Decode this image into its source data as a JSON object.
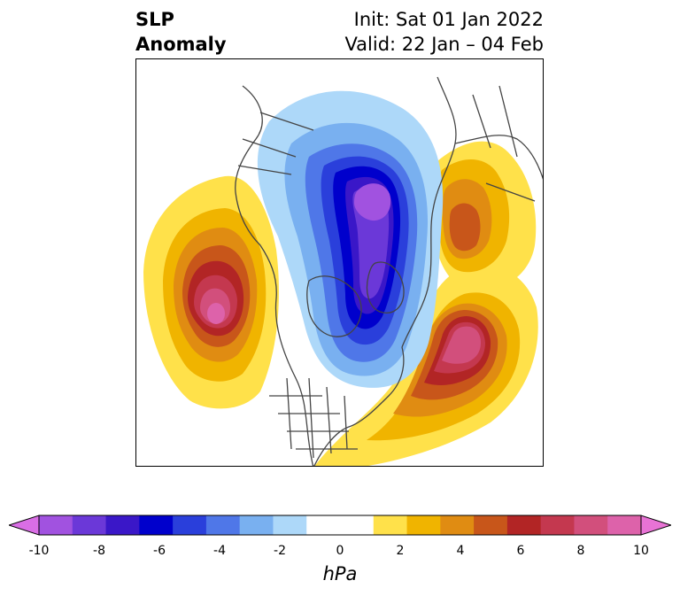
{
  "title": {
    "variable_line1": "SLP",
    "variable_line2": "Anomaly",
    "init": "Init: Sat 01 Jan 2022",
    "valid": "Valid: 22 Jan – 04 Feb"
  },
  "map": {
    "projection": "north-polar-stereographic",
    "features": [
      "coastlines",
      "country borders",
      "US state borders",
      "Canadian province borders"
    ],
    "anomaly_centers": [
      {
        "region": "North Pacific / Gulf of Alaska",
        "sign": "positive",
        "peak_hpa": 10
      },
      {
        "region": "North Atlantic",
        "sign": "positive",
        "peak_hpa": 9
      },
      {
        "region": "Arctic / Canadian Archipelago / Greenland",
        "sign": "negative",
        "peak_hpa": -9
      },
      {
        "region": "Siberia / Far East Russia",
        "sign": "positive",
        "peak_hpa": 5
      }
    ]
  },
  "colorbar": {
    "label": "hPa",
    "ticks": [
      "-10",
      "-8",
      "-6",
      "-4",
      "-2",
      "0",
      "2",
      "4",
      "6",
      "8",
      "10"
    ],
    "extend": "both",
    "colors": [
      "#d96ee5",
      "#a152e0",
      "#6b38d8",
      "#3a17c8",
      "#0000cc",
      "#2a3fdb",
      "#4f77e8",
      "#79b0f0",
      "#add8f9",
      "#ffffff",
      "#ffffff",
      "#ffe14a",
      "#f0b400",
      "#e08c12",
      "#c8561a",
      "#b22525",
      "#c4384f",
      "#d24f7c",
      "#dd62aa",
      "#e873d5"
    ]
  }
}
